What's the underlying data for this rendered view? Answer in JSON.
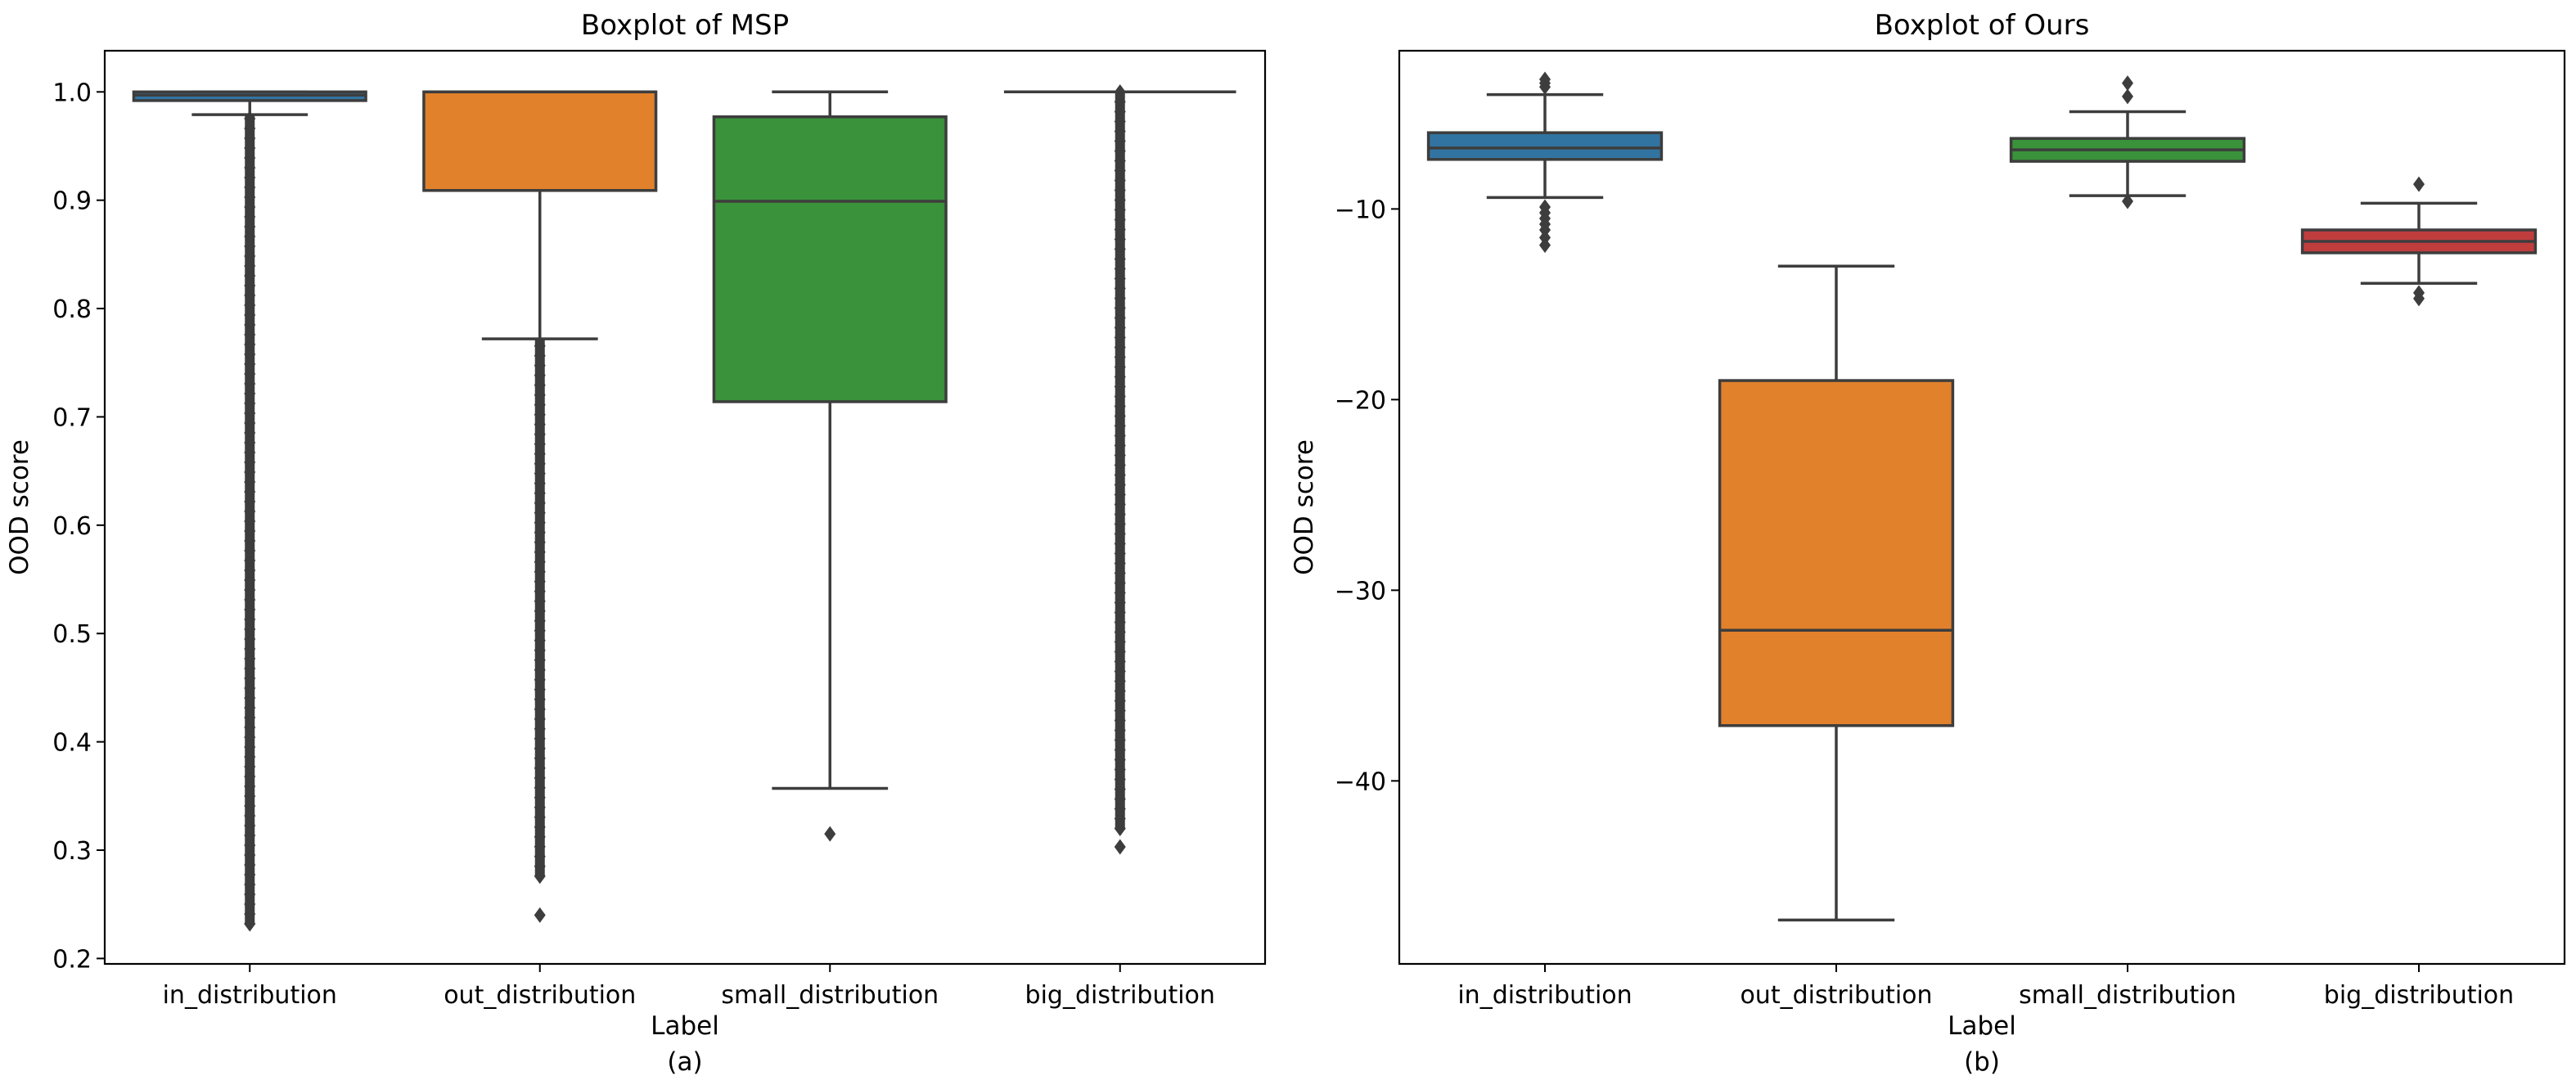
{
  "figure": {
    "panel_labels": [
      "(a)",
      "(b)"
    ]
  },
  "colors": {
    "in_distribution": "#3274a1",
    "out_distribution": "#e1812c",
    "small_distribution": "#3a923a",
    "big_distribution": "#c03d3e",
    "line": "#3d3d3d",
    "outlier": "#3d3d3d"
  },
  "chart_data": [
    {
      "type": "box",
      "title": "Boxplot of MSP",
      "xlabel": "Label",
      "ylabel": "OOD score",
      "panel_label": "(a)",
      "ylim": [
        0.195,
        1.038
      ],
      "yticks": [
        0.2,
        0.3,
        0.4,
        0.5,
        0.6,
        0.7,
        0.8,
        0.9,
        1.0
      ],
      "ytick_labels": [
        "0.2",
        "0.3",
        "0.4",
        "0.5",
        "0.6",
        "0.7",
        "0.8",
        "0.9",
        "1.0"
      ],
      "categories": [
        "in_distribution",
        "out_distribution",
        "small_distribution",
        "big_distribution"
      ],
      "boxes": [
        {
          "category": "in_distribution",
          "whisker_low": 0.979,
          "q1": 0.992,
          "median": 0.997,
          "q3": 1.0,
          "whisker_high": 1.0,
          "outliers_range": [
            0.232,
            0.979
          ],
          "outliers_dense": true,
          "outliers": [
            0.232
          ]
        },
        {
          "category": "out_distribution",
          "whisker_low": 0.772,
          "q1": 0.909,
          "median": 1.0,
          "q3": 1.0,
          "whisker_high": 1.0,
          "outliers_range": [
            0.276,
            0.772
          ],
          "outliers_dense": true,
          "outliers": [
            0.24
          ]
        },
        {
          "category": "small_distribution",
          "whisker_low": 0.357,
          "q1": 0.714,
          "median": 0.899,
          "q3": 0.977,
          "whisker_high": 1.0,
          "outliers_range": null,
          "outliers_dense": false,
          "outliers": [
            0.315
          ]
        },
        {
          "category": "big_distribution",
          "whisker_low": 1.0,
          "q1": 1.0,
          "median": 1.0,
          "q3": 1.0,
          "whisker_high": 1.0,
          "outliers_range": [
            0.32,
            1.0
          ],
          "outliers_dense": true,
          "outliers": [
            0.303
          ]
        }
      ]
    },
    {
      "type": "box",
      "title": "Boxplot of Ours",
      "xlabel": "Label",
      "ylabel": "OOD score",
      "panel_label": "(b)",
      "ylim": [
        -49.6,
        -1.7
      ],
      "yticks": [
        -40,
        -30,
        -20,
        -10
      ],
      "ytick_labels": [
        "−40",
        "−30",
        "−20",
        "−10"
      ],
      "categories": [
        "in_distribution",
        "out_distribution",
        "small_distribution",
        "big_distribution"
      ],
      "boxes": [
        {
          "category": "in_distribution",
          "whisker_low": -9.4,
          "q1": -7.4,
          "median": -6.8,
          "q3": -6.0,
          "whisker_high": -4.0,
          "outliers": [
            -3.2,
            -3.4,
            -3.6,
            -9.9,
            -10.2,
            -10.5,
            -10.8,
            -11.1,
            -11.5,
            -11.9
          ]
        },
        {
          "category": "out_distribution",
          "whisker_low": -47.3,
          "q1": -37.1,
          "median": -32.1,
          "q3": -19.0,
          "whisker_high": -13.0,
          "outliers": []
        },
        {
          "category": "small_distribution",
          "whisker_low": -9.3,
          "q1": -7.5,
          "median": -6.9,
          "q3": -6.3,
          "whisker_high": -4.9,
          "outliers": [
            -3.4,
            -4.1,
            -9.6
          ]
        },
        {
          "category": "big_distribution",
          "whisker_low": -13.9,
          "q1": -12.3,
          "median": -11.7,
          "q3": -11.1,
          "whisker_high": -9.7,
          "outliers": [
            -8.7,
            -14.4,
            -14.7
          ]
        }
      ]
    }
  ]
}
